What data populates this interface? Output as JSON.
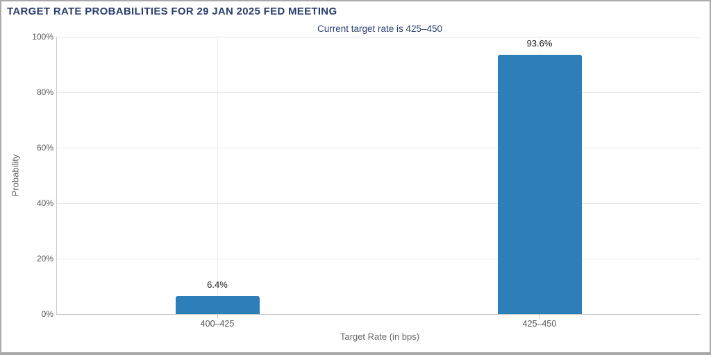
{
  "chart_data": {
    "type": "bar",
    "title": "TARGET RATE PROBABILITIES FOR 29 JAN 2025 FED MEETING",
    "subtitle": "Current target rate is 425–450",
    "categories": [
      "400–425",
      "425–450"
    ],
    "values": [
      6.4,
      93.6
    ],
    "value_labels": [
      "6.4%",
      "93.6%"
    ],
    "xlabel": "Target Rate (in bps)",
    "ylabel": "Probability",
    "ylim": [
      0,
      100
    ],
    "ytick_step": 20,
    "ytick_labels": [
      "0%",
      "20%",
      "40%",
      "60%",
      "80%",
      "100%"
    ],
    "grid": true,
    "legend": "none",
    "bar_color": "#2c7fb8"
  },
  "colors": {
    "title_text": "#2a3e6e",
    "subtitle_text": "#2a3e6e",
    "bar": "#2c7fb8",
    "gridline": "#e8e8e8",
    "axis_line": "#c9c9c9",
    "axis_text": "#555555",
    "axis_title_text": "#666666",
    "value_label_text": "#1a1a1a",
    "border": "#a9a9a9",
    "background": "#ffffff"
  }
}
